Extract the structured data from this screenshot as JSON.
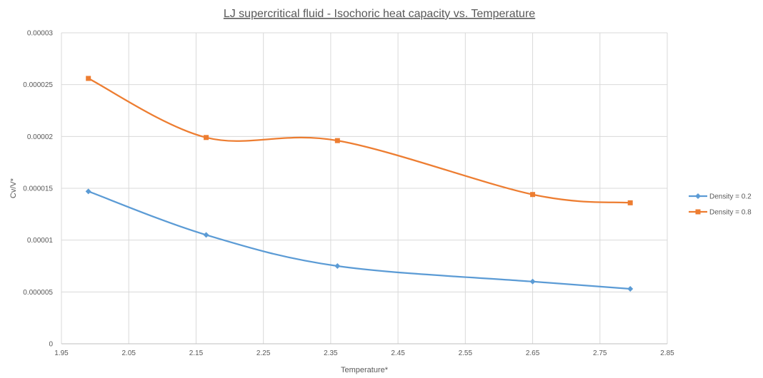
{
  "chart_data": {
    "type": "line",
    "title": "LJ supercritical fluid - Isochoric heat capacity vs. Temperature",
    "xlabel": "Temperature*",
    "ylabel": "Cv/V*",
    "xlim": [
      1.95,
      2.85
    ],
    "ylim": [
      0,
      3e-05
    ],
    "x_ticks": [
      1.95,
      2.05,
      2.15,
      2.25,
      2.35,
      2.45,
      2.55,
      2.65,
      2.75,
      2.85
    ],
    "x_tick_labels": [
      "1.95",
      "2.05",
      "2.15",
      "2.25",
      "2.35",
      "2.45",
      "2.55",
      "2.65",
      "2.75",
      "2.85"
    ],
    "y_ticks": [
      0,
      5e-06,
      1e-05,
      1.5e-05,
      2e-05,
      2.5e-05,
      3e-05
    ],
    "y_tick_labels": [
      "0",
      "0.000005",
      "0.00001",
      "0.000015",
      "0.00002",
      "0.000025",
      "0.00003"
    ],
    "grid": true,
    "smooth": true,
    "legend_position": "right",
    "series": [
      {
        "name": "Density = 0.2",
        "color": "#5B9BD5",
        "marker": "diamond",
        "x": [
          1.99,
          2.165,
          2.36,
          2.65,
          2.795
        ],
        "y": [
          1.47e-05,
          1.05e-05,
          7.5e-06,
          6e-06,
          5.3e-06
        ]
      },
      {
        "name": "Density = 0.8",
        "color": "#ED7D31",
        "marker": "square",
        "x": [
          1.99,
          2.165,
          2.36,
          2.65,
          2.795
        ],
        "y": [
          2.56e-05,
          1.99e-05,
          1.96e-05,
          1.44e-05,
          1.36e-05
        ]
      }
    ]
  }
}
